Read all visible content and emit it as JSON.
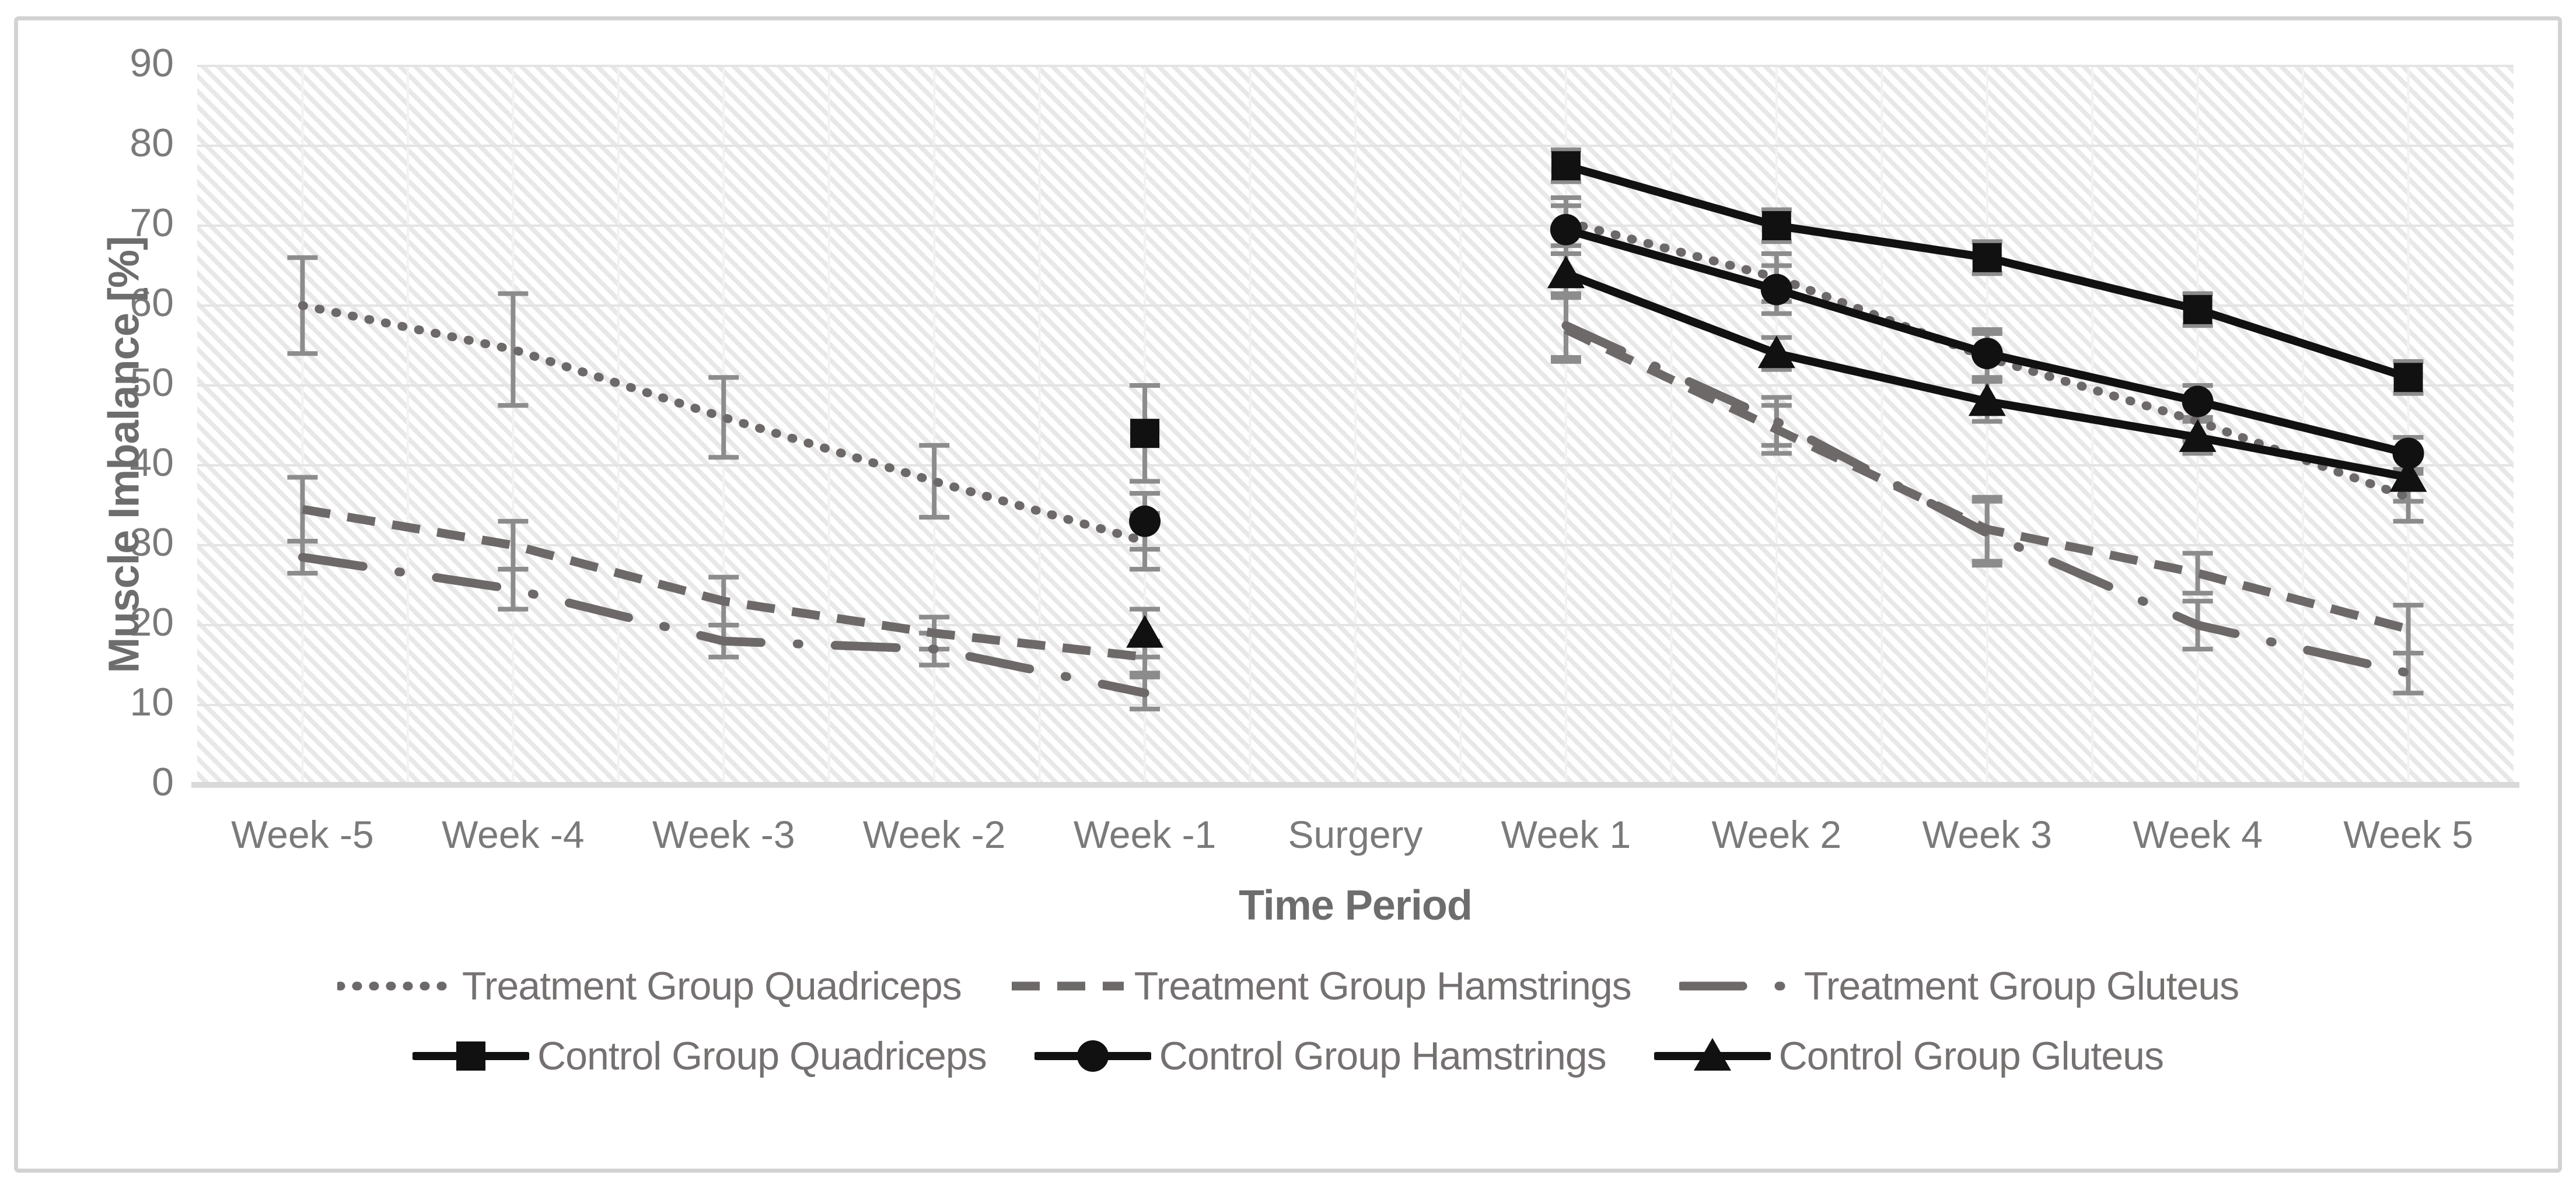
{
  "figure": {
    "y_axis_title": "Muscle Imbalance [%]",
    "x_axis_title": "Time Period"
  },
  "chart_data": {
    "type": "line",
    "title": "",
    "xlabel": "Time Period",
    "ylabel": "Muscle Imbalance [%]",
    "ylim": [
      0,
      90
    ],
    "ytick_step": 10,
    "ytick_labels": [
      "0",
      "10",
      "20",
      "30",
      "40",
      "50",
      "60",
      "70",
      "80",
      "90"
    ],
    "grid": true,
    "plot_background": "diagonal-hatch",
    "legend_position": "bottom",
    "error_bars": true,
    "categories": [
      "Week -5",
      "Week -4",
      "Week -3",
      "Week -2",
      "Week -1",
      "Surgery",
      "Week 1",
      "Week 2",
      "Week 3",
      "Week 4",
      "Week 5"
    ],
    "colors": {
      "treatment_line": "#6e6969",
      "control_line": "#111111",
      "error_bar": "#8c8c8c",
      "gridline": "#e4e4e4",
      "axis_line": "#d9d9d9",
      "tick_label": "#7a7a7a",
      "legend_text": "#767171",
      "axis_title": "#6d6d6d"
    },
    "series": [
      {
        "name": "Treatment Group Quadriceps",
        "group": "treatment",
        "style": "dotted",
        "color": "#6e6969",
        "marker": "none",
        "values": [
          60,
          54.5,
          46,
          38,
          30.5,
          null,
          70.5,
          63.5,
          53.5,
          45.5,
          36
        ],
        "errors": [
          6,
          7,
          5,
          4.5,
          3.5,
          null,
          3,
          3,
          3,
          2.5,
          3
        ]
      },
      {
        "name": "Treatment Group Hamstrings",
        "group": "treatment",
        "style": "dashed",
        "color": "#6e6969",
        "marker": "none",
        "values": [
          34.5,
          30,
          23,
          19,
          16,
          null,
          57,
          44.5,
          32,
          26.5,
          19.5
        ],
        "errors": [
          4,
          3,
          3,
          2,
          2,
          null,
          4,
          3,
          4,
          2.5,
          3
        ]
      },
      {
        "name": "Treatment Group Gluteus",
        "group": "treatment",
        "style": "dashdot",
        "color": "#6e6969",
        "marker": "none",
        "values": [
          28.5,
          24.5,
          18,
          17,
          11.5,
          null,
          57.5,
          45.5,
          31.5,
          20,
          14
        ],
        "errors": [
          2,
          2.5,
          2,
          2,
          2,
          null,
          4,
          3,
          4,
          3,
          2.5
        ]
      },
      {
        "name": "Control Group Quadriceps",
        "group": "control",
        "style": "solid",
        "color": "#111111",
        "marker": "square",
        "values": [
          null,
          null,
          null,
          null,
          44,
          null,
          77.5,
          70,
          66,
          59.5,
          51
        ],
        "errors": [
          null,
          null,
          null,
          null,
          6,
          null,
          2,
          2,
          2,
          2,
          2
        ]
      },
      {
        "name": "Control Group Hamstrings",
        "group": "control",
        "style": "solid",
        "color": "#111111",
        "marker": "circle",
        "values": [
          null,
          null,
          null,
          null,
          33,
          null,
          69.5,
          62,
          54,
          48,
          41.5
        ],
        "errors": [
          null,
          null,
          null,
          null,
          3.5,
          null,
          3,
          3,
          3,
          2,
          2
        ]
      },
      {
        "name": "Control Group Gluteus",
        "group": "control",
        "style": "solid",
        "color": "#111111",
        "marker": "triangle",
        "values": [
          null,
          null,
          null,
          null,
          19,
          null,
          64,
          54,
          48,
          43.5,
          38.5
        ],
        "errors": [
          null,
          null,
          null,
          null,
          3,
          null,
          2.5,
          2,
          2.5,
          2,
          3
        ]
      }
    ]
  }
}
